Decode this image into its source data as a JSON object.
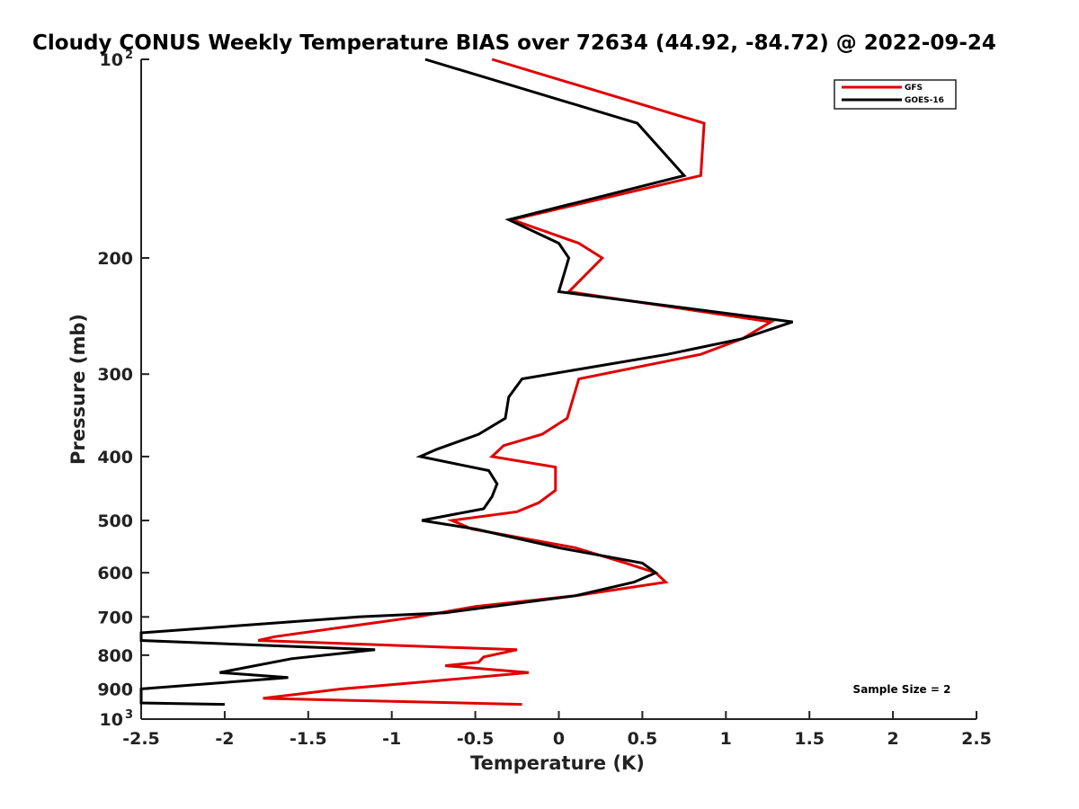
{
  "chart_data": {
    "type": "line",
    "title": "Cloudy CONUS Weekly Temperature BIAS over 72634 (44.92, -84.72) @ 2022-09-24",
    "xlabel": "Temperature (K)",
    "ylabel": "Pressure (mb)",
    "xlim": [
      -2.5,
      2.5
    ],
    "ylim": [
      100,
      1000
    ],
    "y_scale": "log",
    "y_reversed": true,
    "grid": false,
    "legend_position": "top-right",
    "x_ticks": [
      {
        "value": -2.5,
        "label": "-2.5"
      },
      {
        "value": -2,
        "label": "-2"
      },
      {
        "value": -1.5,
        "label": "-1.5"
      },
      {
        "value": -1,
        "label": "-1"
      },
      {
        "value": -0.5,
        "label": "-0.5"
      },
      {
        "value": 0,
        "label": "0"
      },
      {
        "value": 0.5,
        "label": "0.5"
      },
      {
        "value": 1,
        "label": "1"
      },
      {
        "value": 1.5,
        "label": "1.5"
      },
      {
        "value": 2,
        "label": "2"
      },
      {
        "value": 2.5,
        "label": "2.5"
      }
    ],
    "y_ticks": [
      {
        "value": 100,
        "label": "10",
        "sup": "2"
      },
      {
        "value": 200,
        "label": "200"
      },
      {
        "value": 300,
        "label": "300"
      },
      {
        "value": 400,
        "label": "400"
      },
      {
        "value": 500,
        "label": "500"
      },
      {
        "value": 600,
        "label": "600"
      },
      {
        "value": 700,
        "label": "700"
      },
      {
        "value": 800,
        "label": "800"
      },
      {
        "value": 900,
        "label": "900"
      },
      {
        "value": 1000,
        "label": "10",
        "sup": "3"
      }
    ],
    "series": [
      {
        "name": "GFS",
        "color": "#e00000",
        "points": [
          [
            -0.4,
            100
          ],
          [
            0.87,
            125
          ],
          [
            0.85,
            150
          ],
          [
            -0.28,
            175
          ],
          [
            0.12,
            190
          ],
          [
            0.26,
            200
          ],
          [
            0.06,
            225
          ],
          [
            1.27,
            250
          ],
          [
            1.1,
            265
          ],
          [
            0.85,
            280
          ],
          [
            0.12,
            305
          ],
          [
            0.05,
            350
          ],
          [
            -0.1,
            370
          ],
          [
            -0.33,
            385
          ],
          [
            -0.4,
            400
          ],
          [
            -0.02,
            415
          ],
          [
            -0.02,
            450
          ],
          [
            -0.12,
            470
          ],
          [
            -0.25,
            485
          ],
          [
            -0.64,
            500
          ],
          [
            -0.52,
            515
          ],
          [
            0.1,
            550
          ],
          [
            0.4,
            580
          ],
          [
            0.58,
            600
          ],
          [
            0.64,
            620
          ],
          [
            0.1,
            650
          ],
          [
            -0.5,
            675
          ],
          [
            -0.85,
            700
          ],
          [
            -1.7,
            750
          ],
          [
            -1.8,
            760
          ],
          [
            -0.25,
            785
          ],
          [
            -0.45,
            805
          ],
          [
            -0.48,
            820
          ],
          [
            -0.68,
            830
          ],
          [
            -0.18,
            850
          ],
          [
            -0.85,
            880
          ],
          [
            -1.3,
            900
          ],
          [
            -1.77,
            930
          ],
          [
            -0.22,
            950
          ]
        ]
      },
      {
        "name": "GOES-16",
        "color": "#000000",
        "points": [
          [
            -0.8,
            100
          ],
          [
            0.47,
            125
          ],
          [
            0.75,
            150
          ],
          [
            -0.3,
            175
          ],
          [
            0.0,
            190
          ],
          [
            0.06,
            200
          ],
          [
            0.0,
            225
          ],
          [
            1.4,
            250
          ],
          [
            1.1,
            265
          ],
          [
            0.65,
            280
          ],
          [
            -0.22,
            305
          ],
          [
            -0.3,
            325
          ],
          [
            -0.32,
            350
          ],
          [
            -0.48,
            370
          ],
          [
            -0.73,
            390
          ],
          [
            -0.83,
            400
          ],
          [
            -0.42,
            420
          ],
          [
            -0.37,
            440
          ],
          [
            -0.4,
            460
          ],
          [
            -0.45,
            480
          ],
          [
            -0.82,
            500
          ],
          [
            -0.5,
            515
          ],
          [
            0.0,
            550
          ],
          [
            0.5,
            580
          ],
          [
            0.58,
            600
          ],
          [
            0.45,
            620
          ],
          [
            0.1,
            650
          ],
          [
            -0.68,
            690
          ],
          [
            -1.2,
            700
          ],
          [
            -2.5,
            740
          ],
          [
            -2.5,
            760
          ],
          [
            -1.1,
            785
          ],
          [
            -1.6,
            810
          ],
          [
            -2.03,
            850
          ],
          [
            -1.62,
            865
          ],
          [
            -2.5,
            900
          ],
          [
            -2.5,
            945
          ],
          [
            -2.0,
            950
          ]
        ]
      }
    ],
    "annotations": [
      {
        "text": "Sample Size = 2",
        "position": "bottom-right"
      }
    ]
  }
}
